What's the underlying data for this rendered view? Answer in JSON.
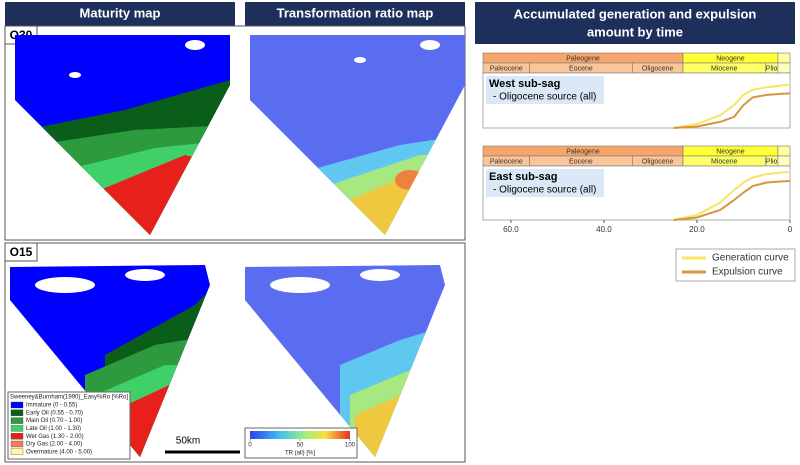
{
  "headers": {
    "maturity": "Maturity map",
    "tr": "Transformation ratio map",
    "accumulated": [
      "Accumulated generation and expulsion",
      "amount by time"
    ]
  },
  "panels": [
    {
      "label": "O30"
    },
    {
      "label": "O15"
    }
  ],
  "maturity_legend": {
    "title": "Sweeney&Burnham(1990)_Easy%Ro [%Ro]",
    "items": [
      {
        "label": "Immature (0 - 0.55)",
        "color": "#0000ff"
      },
      {
        "label": "Early Oil (0.55 - 0.70)",
        "color": "#0b5e1a"
      },
      {
        "label": "Main Oil (0.70 - 1.00)",
        "color": "#2e9a3e"
      },
      {
        "label": "Late Oil (1.00 - 1.30)",
        "color": "#3fd06a"
      },
      {
        "label": "Wet Gas (1.30 - 2.00)",
        "color": "#e8201c"
      },
      {
        "label": "Dry Gas (2.00 - 4.00)",
        "color": "#f0805a"
      },
      {
        "label": "Overmature (4.00 - 5.00)",
        "color": "#fff8a0"
      }
    ]
  },
  "scale_bar": "50km",
  "tr_colorbar": {
    "range": [
      0,
      100
    ],
    "ticks": [
      0,
      50,
      100
    ],
    "label": "TR (all) [%]"
  },
  "chart_data": [
    {
      "type": "line",
      "title": "West sub-sag",
      "subtitle": "- Oligocene source (all)",
      "periods": [
        {
          "name": "Paleogene",
          "start": 66,
          "end": 23,
          "color": "#f7a66b"
        },
        {
          "name": "Neogene",
          "start": 23,
          "end": 2.6,
          "color": "#ffff33"
        },
        {
          "name": null,
          "start": 2.6,
          "end": 0,
          "color": "#ffffa0"
        }
      ],
      "epochs": [
        {
          "name": "Paleocene",
          "start": 66,
          "end": 56,
          "color": "#fbc59a"
        },
        {
          "name": "Eocene",
          "start": 56,
          "end": 33.9,
          "color": "#fbc59a"
        },
        {
          "name": "Oligocene",
          "start": 33.9,
          "end": 23,
          "color": "#fbc59a"
        },
        {
          "name": "Miocene",
          "start": 23,
          "end": 5.3,
          "color": "#ffff66"
        },
        {
          "name": "Plio",
          "start": 5.3,
          "end": 2.6,
          "color": "#ffff88"
        },
        {
          "name": null,
          "start": 2.6,
          "end": 0,
          "color": "#ffffc0"
        }
      ],
      "x": [
        25,
        20,
        15,
        12,
        10,
        8,
        5,
        2,
        0
      ],
      "xlim": [
        66,
        0
      ],
      "ylim": [
        0,
        100
      ],
      "series": [
        {
          "name": "Generation curve",
          "color": "#f7e463",
          "values": [
            0,
            8,
            25,
            45,
            65,
            75,
            80,
            83,
            85
          ]
        },
        {
          "name": "Expulsion curve",
          "color": "#d99440",
          "values": [
            0,
            3,
            12,
            22,
            45,
            60,
            65,
            67,
            68
          ]
        }
      ]
    },
    {
      "type": "line",
      "title": "East sub-sag",
      "subtitle": "- Oligocene source (all)",
      "periods": [
        {
          "name": "Paleogene",
          "start": 66,
          "end": 23,
          "color": "#f7a66b"
        },
        {
          "name": "Neogene",
          "start": 23,
          "end": 2.6,
          "color": "#ffff33"
        },
        {
          "name": null,
          "start": 2.6,
          "end": 0,
          "color": "#ffffa0"
        }
      ],
      "epochs": [
        {
          "name": "Paleocene",
          "start": 66,
          "end": 56,
          "color": "#fbc59a"
        },
        {
          "name": "Eocene",
          "start": 56,
          "end": 33.9,
          "color": "#fbc59a"
        },
        {
          "name": "Oligocene",
          "start": 33.9,
          "end": 23,
          "color": "#fbc59a"
        },
        {
          "name": "Miocene",
          "start": 23,
          "end": 5.3,
          "color": "#ffff66"
        },
        {
          "name": "Plio",
          "start": 5.3,
          "end": 2.6,
          "color": "#ffff88"
        },
        {
          "name": null,
          "start": 2.6,
          "end": 0,
          "color": "#ffffc0"
        }
      ],
      "x": [
        25,
        20,
        15,
        12,
        10,
        8,
        5,
        2,
        0
      ],
      "xlim": [
        66,
        0
      ],
      "ylim": [
        0,
        100
      ],
      "xticks": [
        {
          "value": 60,
          "label": "60.0"
        },
        {
          "value": 40,
          "label": "40.0"
        },
        {
          "value": 20,
          "label": "20.0"
        },
        0
      ],
      "series": [
        {
          "name": "Generation curve",
          "color": "#f7e463",
          "values": [
            0,
            10,
            35,
            60,
            75,
            85,
            92,
            95,
            96
          ]
        },
        {
          "name": "Expulsion curve",
          "color": "#d99440",
          "values": [
            0,
            5,
            20,
            40,
            55,
            68,
            75,
            77,
            78
          ]
        }
      ]
    }
  ]
}
